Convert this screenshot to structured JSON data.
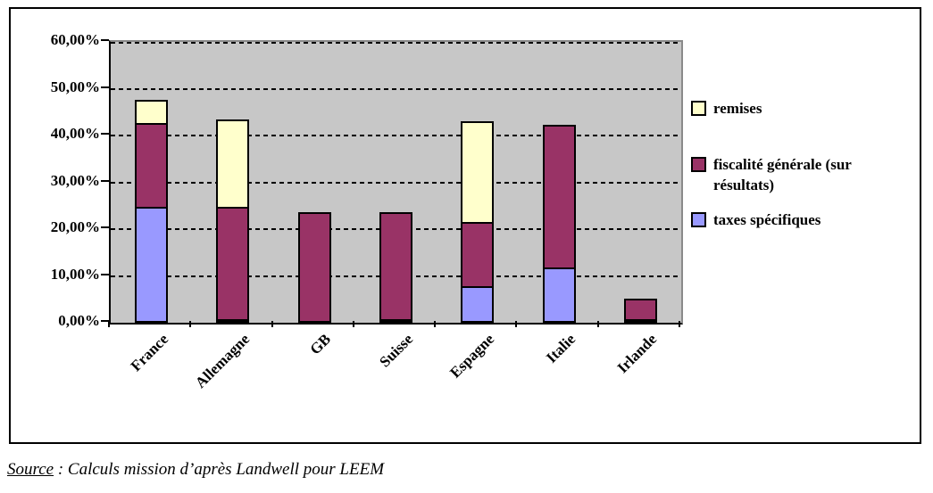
{
  "chart_data": {
    "type": "bar",
    "stacked": true,
    "categories": [
      "France",
      "Allemagne",
      "GB",
      "Suisse",
      "Espagne",
      "Italie",
      "Irlande"
    ],
    "series": [
      {
        "name": "taxes spécifiques",
        "color": "#9999FF",
        "values": [
          24.8,
          0.5,
          0,
          0.4,
          7.9,
          11.9,
          0.4
        ]
      },
      {
        "name": "fiscalité générale (sur résultats)",
        "color": "#993366",
        "values": [
          18.3,
          24.3,
          23.6,
          23.2,
          14.0,
          30.7,
          4.7
        ]
      },
      {
        "name": "remises",
        "color": "#FFFFCC",
        "values": [
          5.3,
          19.1,
          0,
          0,
          21.9,
          0,
          0
        ]
      }
    ],
    "title": "",
    "xlabel": "",
    "ylabel": "",
    "ylim": [
      0,
      60
    ],
    "y_ticks": [
      "60,00%",
      "50,00%",
      "40,00%",
      "30,00%",
      "20,00%",
      "10,00%",
      "0,00%"
    ],
    "grid": "horizontal-dashed-black",
    "plot_background": "#C7C7C7",
    "legend_position": "right"
  },
  "legend": {
    "items": [
      {
        "label": "remises",
        "color": "#FFFFCC"
      },
      {
        "label": "fiscalité générale (sur résultats)",
        "color": "#993366"
      },
      {
        "label": "taxes spécifiques",
        "color": "#9999FF"
      }
    ]
  },
  "source": {
    "label": "Source",
    "text": " : Calculs mission d’après Landwell pour LEEM"
  }
}
